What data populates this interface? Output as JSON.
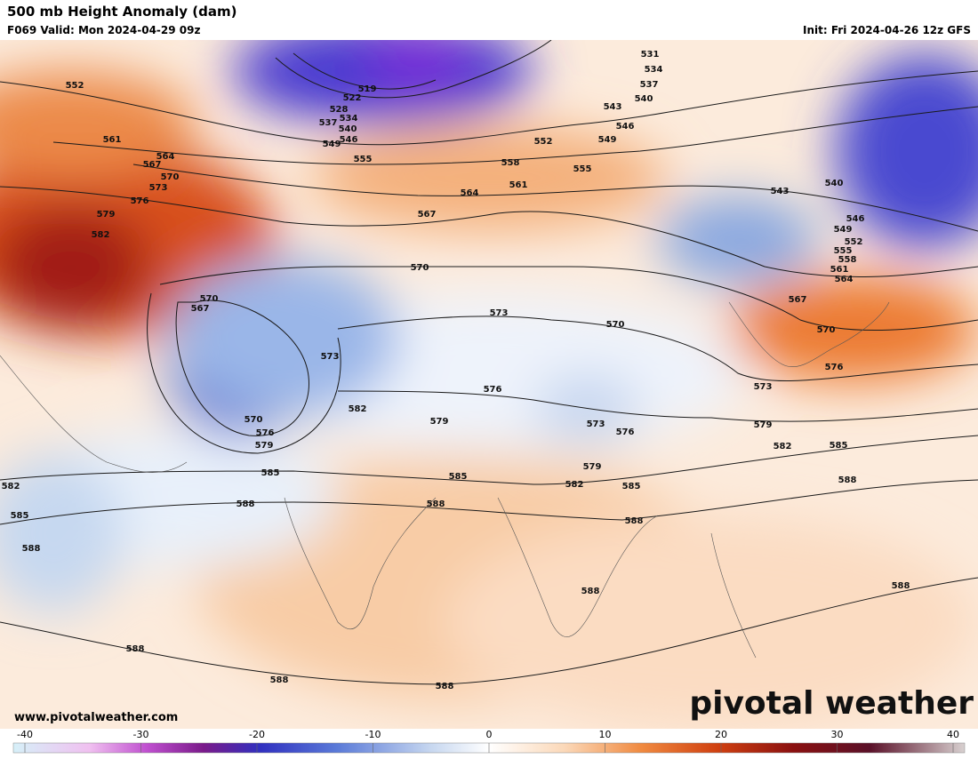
{
  "header": {
    "title": "500 mb Height Anomaly (dam)",
    "valid": "F069 Valid: Mon 2024-04-29 09z",
    "init": "Init: Fri 2024-04-26 12z GFS"
  },
  "watermark": "www.pivotalweather.com",
  "logo": "pivotal weather",
  "colorbar": {
    "ticks": [
      -40,
      -30,
      -20,
      -10,
      0,
      10,
      20,
      30,
      40
    ]
  },
  "contour_labels": [
    552,
    561,
    564,
    567,
    570,
    573,
    576,
    579,
    582,
    519,
    522,
    528,
    537,
    534,
    540,
    549,
    546,
    555,
    531,
    534,
    537,
    540,
    543,
    546,
    549,
    552,
    555,
    558,
    561,
    564,
    567,
    570,
    543,
    540,
    546,
    549,
    552,
    555,
    558,
    561,
    564,
    567,
    570,
    573,
    576,
    579,
    582,
    585,
    588,
    588,
    570,
    567,
    573,
    573,
    570,
    576,
    579,
    582,
    570,
    576,
    579,
    585,
    588,
    585,
    588,
    582,
    585,
    588,
    573,
    576,
    579,
    588,
    582,
    585,
    588,
    588,
    588,
    588
  ]
}
